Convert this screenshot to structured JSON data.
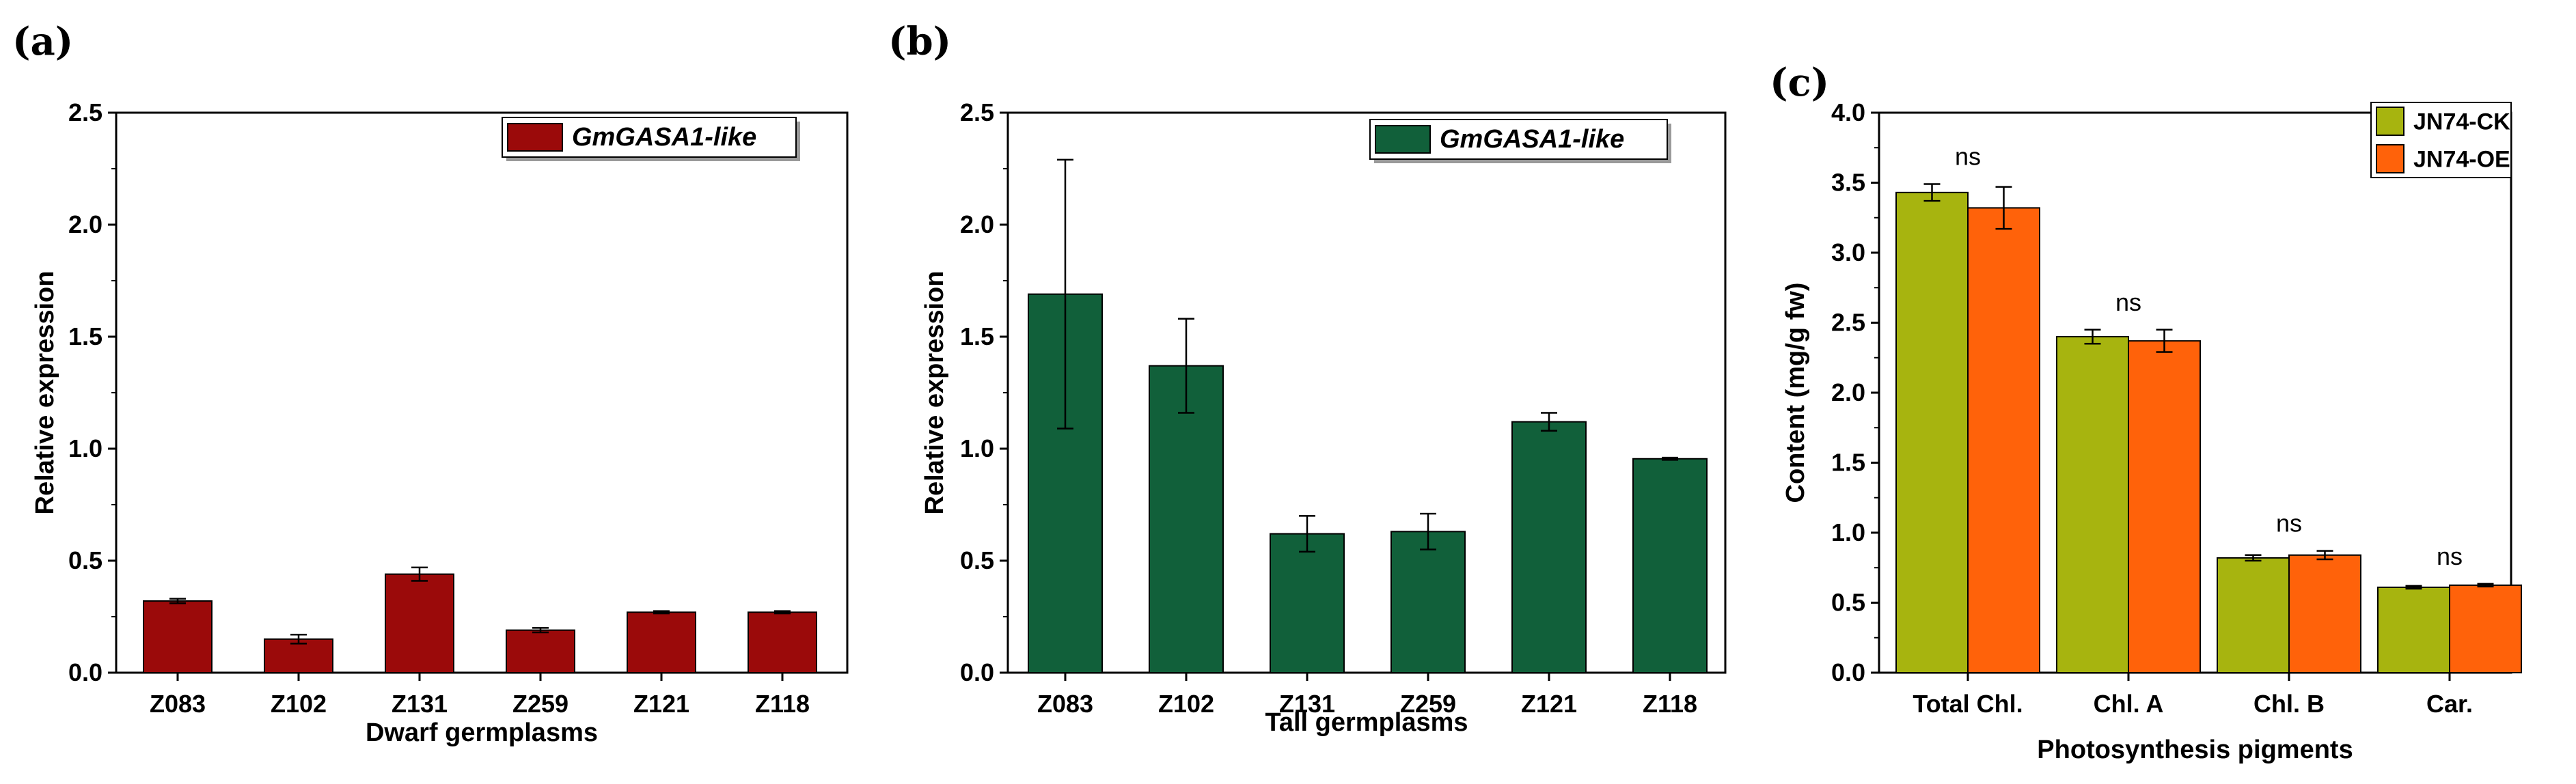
{
  "chart_data": [
    {
      "type": "bar",
      "panel_label": "(a)",
      "categories": [
        "Z083",
        "Z102",
        "Z131",
        "Z259",
        "Z121",
        "Z118"
      ],
      "series": [
        {
          "name": "GmGASA1-like",
          "color": "#9b0a0a",
          "values": [
            0.32,
            0.15,
            0.44,
            0.19,
            0.27,
            0.27
          ],
          "errors": [
            0.01,
            0.02,
            0.03,
            0.01,
            0.005,
            0.005
          ]
        }
      ],
      "xlabel": "Dwarf germplasms",
      "ylabel": "Relative expression",
      "ylim": [
        0,
        2.5
      ],
      "yticks": [
        "0.0",
        "0.5",
        "1.0",
        "1.5",
        "2.0",
        "2.5"
      ],
      "legend": "top-right"
    },
    {
      "type": "bar",
      "panel_label": "(b)",
      "categories": [
        "Z083",
        "Z102",
        "Z131",
        "Z259",
        "Z121",
        "Z118"
      ],
      "series": [
        {
          "name": "GmGASA1-like",
          "color": "#11603a",
          "values": [
            1.69,
            1.37,
            0.62,
            0.63,
            1.12,
            0.955
          ],
          "errors": [
            0.6,
            0.21,
            0.08,
            0.08,
            0.04,
            0.005
          ]
        }
      ],
      "xlabel": "Tall germplasms",
      "ylabel": "Relative expression",
      "ylim": [
        0,
        2.5
      ],
      "yticks": [
        "0.0",
        "0.5",
        "1.0",
        "1.5",
        "2.0",
        "2.5"
      ],
      "legend": "top-right"
    },
    {
      "type": "bar",
      "panel_label": "(c)",
      "categories": [
        "Total Chl.",
        "Chl. A",
        "Chl. B",
        "Car."
      ],
      "series": [
        {
          "name": "JN74-CK",
          "color": "#a7b40f",
          "values": [
            3.43,
            2.4,
            0.82,
            0.61
          ],
          "errors": [
            0.06,
            0.05,
            0.02,
            0.01
          ]
        },
        {
          "name": "JN74-OE",
          "color": "#ff620a",
          "values": [
            3.32,
            2.37,
            0.84,
            0.625
          ],
          "errors": [
            0.15,
            0.08,
            0.03,
            0.01
          ]
        }
      ],
      "significance": [
        "ns",
        "ns",
        "ns",
        "ns"
      ],
      "xlabel": "Photosynthesis pigments",
      "ylabel": "Content (mg/g fw)",
      "ylim": [
        0,
        4.0
      ],
      "yticks": [
        "0.0",
        "0.5",
        "1.0",
        "1.5",
        "2.0",
        "2.5",
        "3.0",
        "3.5",
        "4.0"
      ],
      "legend": "top-right"
    }
  ]
}
